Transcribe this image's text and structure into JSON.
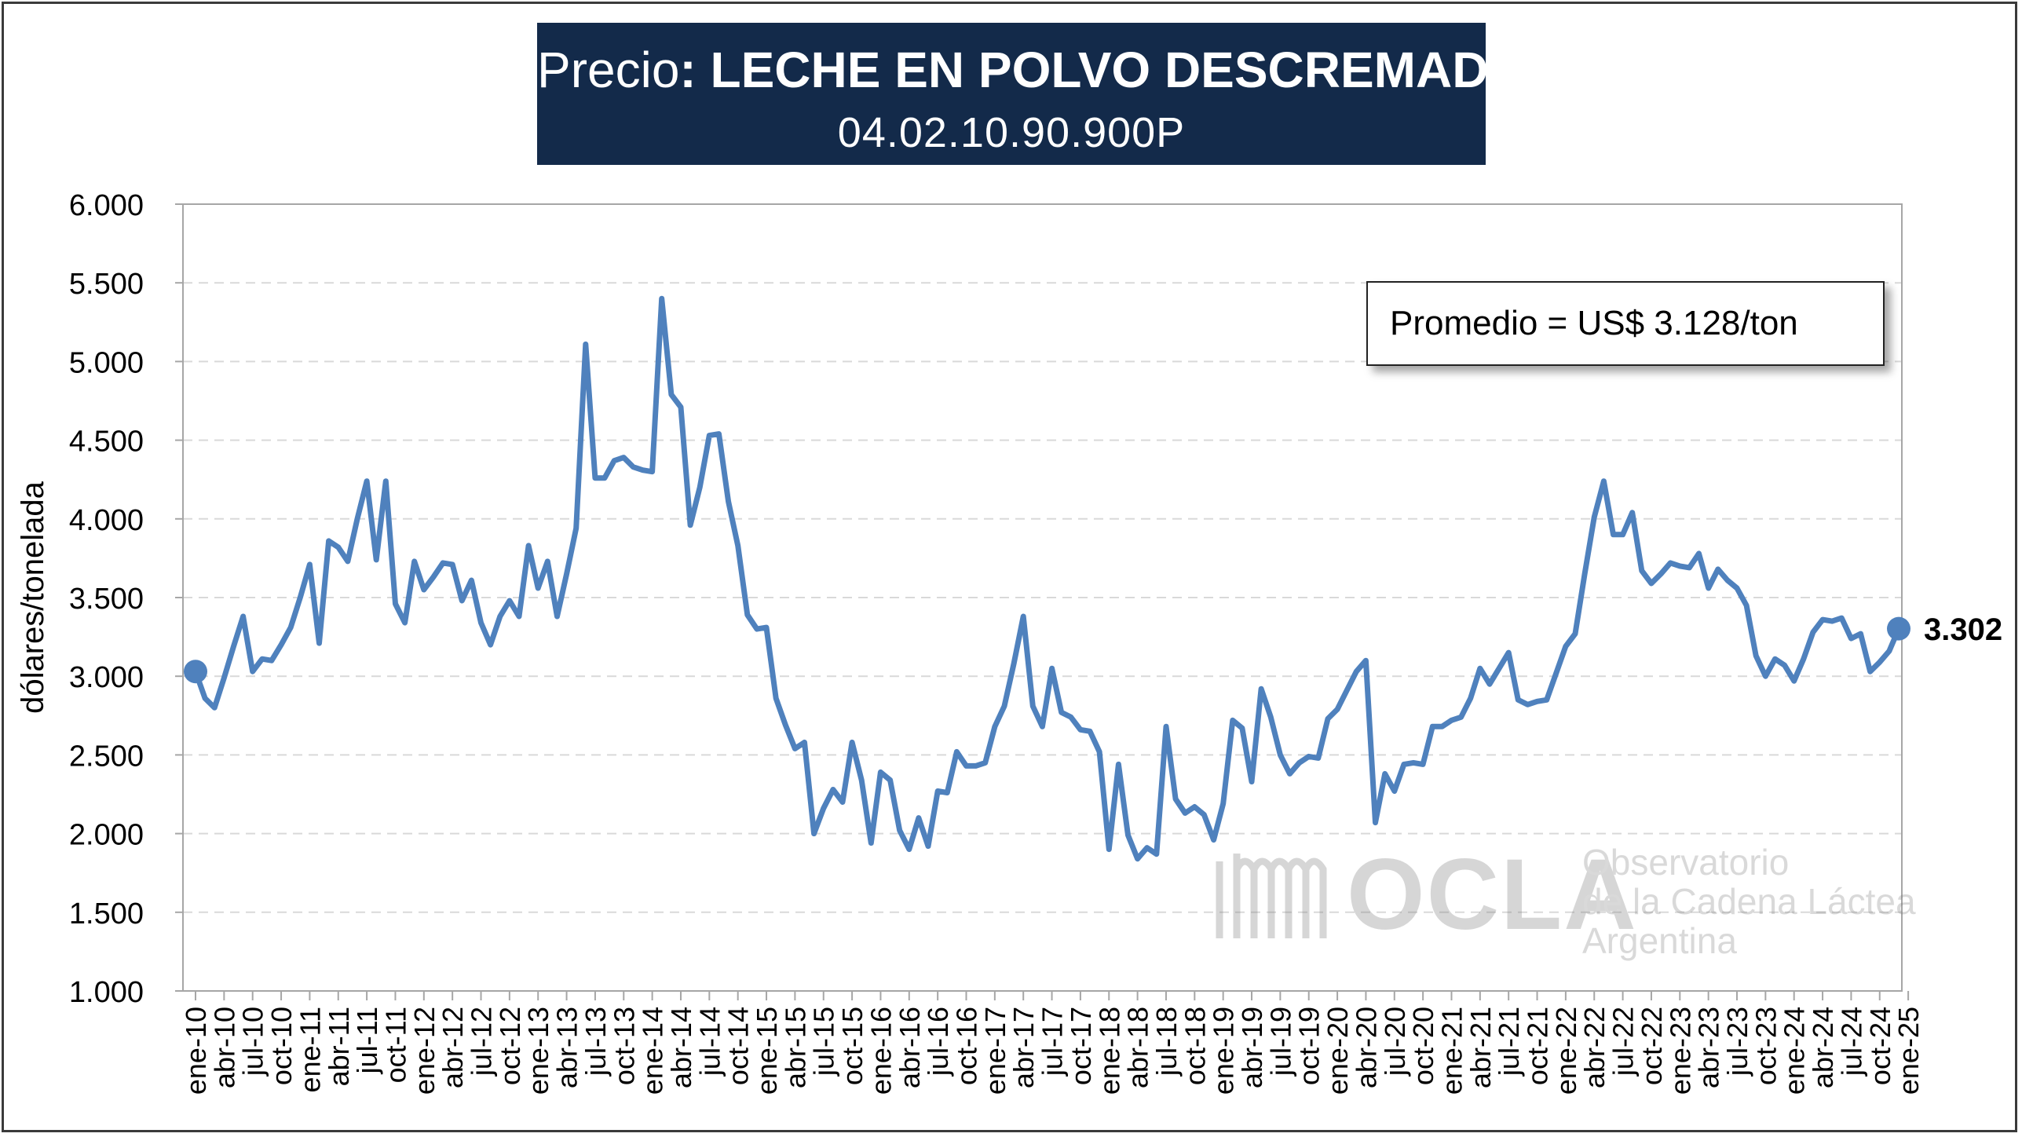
{
  "header": {
    "title_prefix": "Precio",
    "title_main": ": LECHE EN POLVO DESCREMADA",
    "code": "04.02.10.90.900P"
  },
  "annotations": {
    "average": "Promedio = US$ 3.128/ton",
    "last_value_label": "3.302"
  },
  "watermark": {
    "brand": "OCLA",
    "line1": "Observatorio",
    "line2": "de la Cadena Láctea",
    "line3": "Argentina"
  },
  "colors": {
    "series": "#4f81bd",
    "title_bg": "#132a4a",
    "grid": "#d9d9d9"
  },
  "chart_data": {
    "type": "line",
    "title": "Precio: LECHE EN POLVO DESCREMADA",
    "subtitle": "04.02.10.90.900P",
    "xlabel": "",
    "ylabel": "dólares/tonelada",
    "ylim": [
      1000,
      6000
    ],
    "yticks": [
      "1.000",
      "1.500",
      "2.000",
      "2.500",
      "3.000",
      "3.500",
      "4.000",
      "4.500",
      "5.000",
      "5.500",
      "6.000"
    ],
    "grid": true,
    "x_tick_labels": [
      "ene-10",
      "abr-10",
      "jul-10",
      "oct-10",
      "ene-11",
      "abr-11",
      "jul-11",
      "oct-11",
      "ene-12",
      "abr-12",
      "jul-12",
      "oct-12",
      "ene-13",
      "abr-13",
      "jul-13",
      "oct-13",
      "ene-14",
      "abr-14",
      "jul-14",
      "oct-14",
      "ene-15",
      "abr-15",
      "jul-15",
      "oct-15",
      "ene-16",
      "abr-16",
      "jul-16",
      "oct-16",
      "ene-17",
      "abr-17",
      "jul-17",
      "oct-17",
      "ene-18",
      "abr-18",
      "jul-18",
      "oct-18",
      "ene-19",
      "abr-19",
      "jul-19",
      "oct-19",
      "ene-20",
      "abr-20",
      "jul-20",
      "oct-20",
      "ene-21",
      "abr-21",
      "jul-21",
      "oct-21",
      "ene-22",
      "abr-22",
      "jul-22",
      "oct-22",
      "ene-23",
      "abr-23",
      "jul-23",
      "oct-23",
      "ene-24",
      "abr-24",
      "jul-24",
      "oct-24",
      "ene-25"
    ],
    "x_start": "ene-10",
    "frequency": "monthly",
    "series": [
      {
        "values": [
          3030,
          2860,
          2800,
          2990,
          3190,
          3380,
          3030,
          3110,
          3100,
          3200,
          3310,
          3500,
          3710,
          3210,
          3860,
          3820,
          3730,
          4000,
          4240,
          3740,
          4240,
          3460,
          3340,
          3730,
          3550,
          3630,
          3720,
          3710,
          3480,
          3610,
          3340,
          3200,
          3380,
          3480,
          3380,
          3830,
          3560,
          3730,
          3380,
          3650,
          3940,
          5110,
          4260,
          4260,
          4370,
          4390,
          4330,
          4310,
          4300,
          5400,
          4790,
          4710,
          3960,
          4200,
          4530,
          4540,
          4110,
          3830,
          3390,
          3300,
          3310,
          2860,
          2690,
          2540,
          2580,
          2000,
          2160,
          2280,
          2200,
          2580,
          2340,
          1940,
          2390,
          2340,
          2020,
          1900,
          2100,
          1920,
          2270,
          2260,
          2520,
          2430,
          2430,
          2450,
          2680,
          2810,
          3080,
          3380,
          2810,
          2680,
          3050,
          2770,
          2740,
          2660,
          2650,
          2520,
          1900,
          2440,
          1990,
          1840,
          1910,
          1870,
          2680,
          2220,
          2130,
          2170,
          2120,
          1960,
          2190,
          2720,
          2670,
          2330,
          2920,
          2740,
          2500,
          2380,
          2450,
          2490,
          2480,
          2730,
          2790,
          2910,
          3030,
          3100,
          2070,
          2380,
          2270,
          2440,
          2450,
          2440,
          2680,
          2680,
          2720,
          2740,
          2860,
          3050,
          2950,
          3050,
          3150,
          2850,
          2820,
          2840,
          2850,
          3020,
          3190,
          3270,
          3650,
          4010,
          4240,
          3900,
          3900,
          4040,
          3670,
          3590,
          3650,
          3720,
          3700,
          3690,
          3780,
          3560,
          3680,
          3610,
          3560,
          3450,
          3130,
          3000,
          3110,
          3070,
          2970,
          3110,
          3280,
          3360,
          3350,
          3370,
          3240,
          3270,
          3030,
          3090,
          3160,
          3302
        ]
      }
    ]
  }
}
